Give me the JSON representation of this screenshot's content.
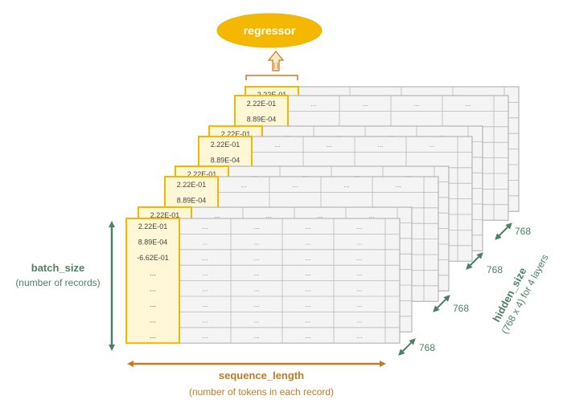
{
  "regressor": {
    "label": "regressor"
  },
  "first_column_values": [
    "2.22E-01",
    "8.89E-04",
    "-6.62E-01",
    "...",
    "...",
    "...",
    "...",
    "..."
  ],
  "partial_top_value": "2.22E-01",
  "back_layer_top_value": "2.22E-01",
  "back_layer_second_value": "8.89E-04",
  "cell_placeholder": "...",
  "batch_size": {
    "title": "batch_size",
    "subtitle": "(number of records)"
  },
  "sequence_length": {
    "title": "sequence_length",
    "subtitle": "(number of tokens in each record)"
  },
  "hidden_size": {
    "title": "hidden_size",
    "subtitle": "(768 x 4) for 4 layers"
  },
  "layer_dims": [
    "768",
    "768",
    "768",
    "768"
  ],
  "colors": {
    "highlight_border": "#f2b705",
    "highlight_fill": "#fff7d6",
    "regressor_fill": "#f5b800",
    "green": "#4d8066",
    "orange": "#c27a25",
    "grid_line": "#b8b8b8"
  }
}
